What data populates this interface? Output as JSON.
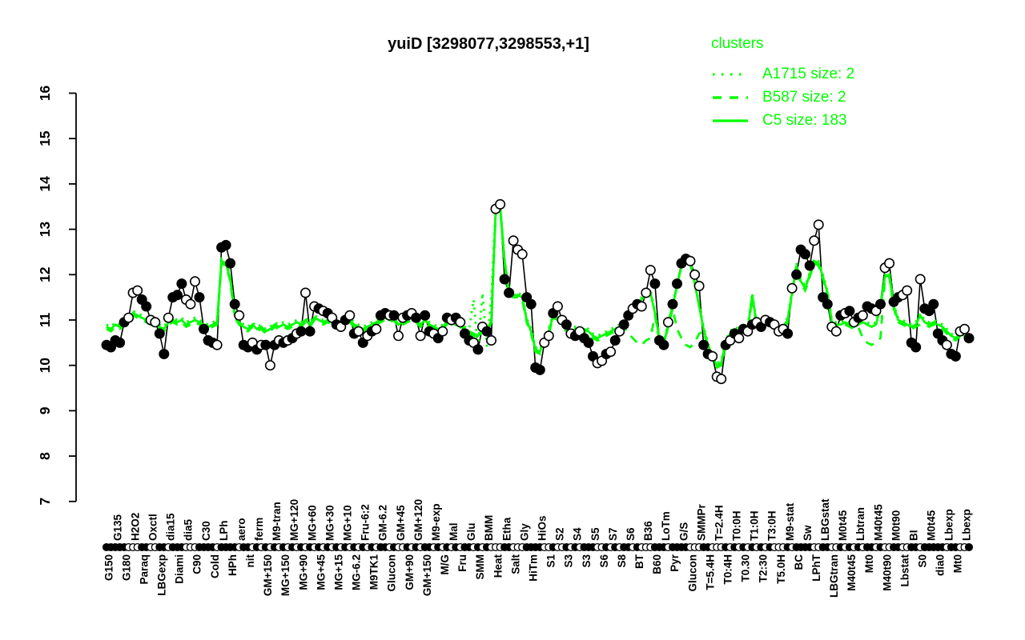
{
  "title": "yuiD [3298077,3298553,+1]",
  "colors": {
    "cluster_green": "#00ff00",
    "series_black": "#000000",
    "background": "#ffffff"
  },
  "legend": {
    "header": "clusters",
    "items": [
      {
        "label": "A1715 size: 2",
        "style": "dotted"
      },
      {
        "label": "B587 size: 2",
        "style": "dashed"
      },
      {
        "label": "C5 size: 183",
        "style": "solid"
      }
    ]
  },
  "y_axis": {
    "min": 7,
    "max": 16,
    "ticks": [
      7,
      8,
      9,
      10,
      11,
      12,
      13,
      14,
      15,
      16
    ]
  },
  "chart_data": {
    "type": "line",
    "title": "yuiD [3298077,3298553,+1]",
    "ylim": [
      7,
      16
    ],
    "grid": false,
    "legend_position": "top-right",
    "x_labels": [
      {
        "text": "G150",
        "row": "bottom"
      },
      {
        "text": "G135",
        "row": "top"
      },
      {
        "text": "G180",
        "row": "bottom"
      },
      {
        "text": "H2O2",
        "row": "top"
      },
      {
        "text": "Paraq",
        "row": "bottom"
      },
      {
        "text": "Oxctl",
        "row": "top"
      },
      {
        "text": "LBGexp",
        "row": "bottom"
      },
      {
        "text": "dia15",
        "row": "top"
      },
      {
        "text": "Diami",
        "row": "bottom"
      },
      {
        "text": "dia5",
        "row": "top"
      },
      {
        "text": "C90",
        "row": "bottom"
      },
      {
        "text": "C30",
        "row": "top"
      },
      {
        "text": "Cold",
        "row": "bottom"
      },
      {
        "text": "LPh",
        "row": "top"
      },
      {
        "text": "HPh",
        "row": "bottom"
      },
      {
        "text": "aero",
        "row": "top"
      },
      {
        "text": "nit",
        "row": "bottom"
      },
      {
        "text": "ferm",
        "row": "top"
      },
      {
        "text": "GM+150",
        "row": "bottom"
      },
      {
        "text": "M9-tran",
        "row": "top"
      },
      {
        "text": "MG+150",
        "row": "bottom"
      },
      {
        "text": "MG+120",
        "row": "top"
      },
      {
        "text": "MG+90",
        "row": "bottom"
      },
      {
        "text": "MG+60",
        "row": "top"
      },
      {
        "text": "MG+45",
        "row": "bottom"
      },
      {
        "text": "MG+30",
        "row": "top"
      },
      {
        "text": "MG+15",
        "row": "bottom"
      },
      {
        "text": "MG+10",
        "row": "top"
      },
      {
        "text": "MG-6.2",
        "row": "bottom"
      },
      {
        "text": "Fru-6:2",
        "row": "top"
      },
      {
        "text": "M9TK1",
        "row": "bottom"
      },
      {
        "text": "GM-6.2",
        "row": "top"
      },
      {
        "text": "Glucon",
        "row": "bottom"
      },
      {
        "text": "GM+45",
        "row": "top"
      },
      {
        "text": "GM+90",
        "row": "bottom"
      },
      {
        "text": "GM+120",
        "row": "top"
      },
      {
        "text": "GM+150",
        "row": "bottom"
      },
      {
        "text": "M9-exp",
        "row": "top"
      },
      {
        "text": "M/G",
        "row": "bottom"
      },
      {
        "text": "Mal",
        "row": "top"
      },
      {
        "text": "Fru",
        "row": "bottom"
      },
      {
        "text": "Glu",
        "row": "top"
      },
      {
        "text": "SMM",
        "row": "bottom"
      },
      {
        "text": "BMM",
        "row": "top"
      },
      {
        "text": "Heat",
        "row": "bottom"
      },
      {
        "text": "Etha",
        "row": "top"
      },
      {
        "text": "Salt",
        "row": "bottom"
      },
      {
        "text": "Gly",
        "row": "top"
      },
      {
        "text": "HiTm",
        "row": "bottom"
      },
      {
        "text": "HiOs",
        "row": "top"
      },
      {
        "text": "S1",
        "row": "bottom"
      },
      {
        "text": "S2",
        "row": "top"
      },
      {
        "text": "S3",
        "row": "bottom"
      },
      {
        "text": "S4",
        "row": "top"
      },
      {
        "text": "S3",
        "row": "bottom"
      },
      {
        "text": "S5",
        "row": "top"
      },
      {
        "text": "S6",
        "row": "bottom"
      },
      {
        "text": "S7",
        "row": "top"
      },
      {
        "text": "S8",
        "row": "bottom"
      },
      {
        "text": "S6",
        "row": "top"
      },
      {
        "text": "BT",
        "row": "bottom"
      },
      {
        "text": "B36",
        "row": "top"
      },
      {
        "text": "B60",
        "row": "bottom"
      },
      {
        "text": "LoTm",
        "row": "top"
      },
      {
        "text": "Pyr",
        "row": "bottom"
      },
      {
        "text": "G/S",
        "row": "top"
      },
      {
        "text": "Glucon",
        "row": "bottom"
      },
      {
        "text": "SMMPr",
        "row": "top"
      },
      {
        "text": "T=5.4H",
        "row": "bottom"
      },
      {
        "text": "T=2.4H",
        "row": "top"
      },
      {
        "text": "T0:4H",
        "row": "bottom"
      },
      {
        "text": "T0:0H",
        "row": "top"
      },
      {
        "text": "T0.30",
        "row": "bottom"
      },
      {
        "text": "T1:0H",
        "row": "top"
      },
      {
        "text": "T2:30",
        "row": "bottom"
      },
      {
        "text": "T3:0H",
        "row": "top"
      },
      {
        "text": "T5.0H",
        "row": "bottom"
      },
      {
        "text": "M9-stat",
        "row": "top"
      },
      {
        "text": "BC",
        "row": "bottom"
      },
      {
        "text": "Sw",
        "row": "top"
      },
      {
        "text": "LPhT",
        "row": "bottom"
      },
      {
        "text": "LBGstat",
        "row": "top"
      },
      {
        "text": "LBGtran",
        "row": "bottom"
      },
      {
        "text": "M0t45",
        "row": "top"
      },
      {
        "text": "M40t45",
        "row": "bottom"
      },
      {
        "text": "Lbtran",
        "row": "top"
      },
      {
        "text": "Mt0",
        "row": "bottom"
      },
      {
        "text": "M40t45",
        "row": "top"
      },
      {
        "text": "M40t90",
        "row": "bottom"
      },
      {
        "text": "M0t90",
        "row": "top"
      },
      {
        "text": "Lbstat",
        "row": "bottom"
      },
      {
        "text": "BI",
        "row": "top"
      },
      {
        "text": "S0",
        "row": "bottom"
      },
      {
        "text": "M0t45",
        "row": "top"
      },
      {
        "text": "dia0",
        "row": "bottom"
      },
      {
        "text": "Lbexp",
        "row": "top"
      },
      {
        "text": "Mt0",
        "row": "bottom"
      },
      {
        "text": "Lbexp",
        "row": "top"
      }
    ],
    "gene_series": {
      "name": "yuiD",
      "values": [
        10.45,
        10.4,
        10.55,
        10.5,
        10.95,
        11.05,
        11.6,
        11.65,
        11.45,
        11.3,
        11.0,
        10.95,
        10.7,
        10.25,
        11.05,
        11.5,
        11.55,
        11.8,
        11.45,
        11.35,
        11.85,
        11.5,
        10.8,
        10.55,
        10.5,
        10.45,
        12.6,
        12.65,
        12.25,
        11.35,
        11.1,
        10.45,
        10.4,
        10.5,
        10.35,
        10.45,
        10.45,
        10.0,
        10.45,
        10.55,
        10.5,
        10.55,
        10.6,
        10.7,
        10.75,
        11.6,
        10.75,
        11.3,
        11.25,
        11.2,
        11.15,
        11.05,
        10.9,
        10.85,
        11.0,
        11.1,
        10.7,
        10.75,
        10.5,
        10.65,
        10.75,
        10.8,
        11.1,
        11.15,
        11.1,
        11.1,
        10.65,
        11.05,
        11.1,
        11.15,
        11.05,
        10.65,
        11.1,
        10.75,
        10.7,
        10.6,
        10.75,
        11.05,
        11.0,
        11.05,
        10.95,
        10.7,
        10.55,
        10.5,
        10.35,
        10.85,
        10.75,
        10.55,
        13.45,
        13.55,
        11.9,
        11.6,
        12.75,
        12.55,
        12.45,
        11.5,
        11.35,
        9.95,
        9.9,
        10.5,
        10.65,
        11.15,
        11.3,
        11.0,
        10.9,
        10.7,
        10.65,
        10.75,
        10.6,
        10.5,
        10.2,
        10.05,
        10.1,
        10.25,
        10.3,
        10.55,
        10.75,
        10.9,
        11.1,
        11.25,
        11.35,
        11.3,
        11.6,
        12.1,
        11.8,
        10.55,
        10.45,
        10.95,
        11.35,
        11.8,
        12.25,
        12.35,
        12.3,
        12.0,
        11.75,
        10.45,
        10.25,
        10.2,
        9.75,
        9.7,
        10.45,
        10.55,
        10.7,
        10.6,
        10.8,
        10.75,
        10.9,
        10.95,
        10.85,
        11.0,
        10.95,
        10.9,
        10.75,
        10.8,
        10.7,
        11.7,
        12.0,
        12.55,
        12.45,
        12.2,
        12.75,
        13.1,
        11.5,
        11.35,
        10.85,
        10.75,
        11.1,
        11.15,
        11.2,
        10.95,
        11.05,
        11.1,
        11.3,
        11.25,
        11.2,
        11.35,
        12.15,
        12.25,
        11.4,
        11.5,
        11.55,
        11.65,
        10.5,
        10.4,
        11.9,
        11.25,
        11.2,
        11.35,
        10.7,
        10.55,
        10.45,
        10.25,
        10.2,
        10.75,
        10.8,
        10.6
      ],
      "filled": [
        1,
        1,
        1,
        1,
        1,
        0,
        0,
        0,
        1,
        1,
        0,
        0,
        1,
        1,
        0,
        1,
        1,
        1,
        0,
        0,
        0,
        1,
        1,
        1,
        1,
        0,
        1,
        1,
        1,
        1,
        0,
        1,
        1,
        0,
        1,
        0,
        1,
        0,
        1,
        0,
        1,
        0,
        1,
        0,
        1,
        0,
        1,
        0,
        1,
        0,
        1,
        0,
        1,
        0,
        1,
        0,
        1,
        0,
        1,
        0,
        1,
        0,
        1,
        1,
        0,
        1,
        0,
        0,
        1,
        0,
        1,
        0,
        1,
        1,
        0,
        1,
        0,
        1,
        0,
        1,
        0,
        1,
        1,
        0,
        1,
        0,
        1,
        0,
        0,
        0,
        1,
        1,
        0,
        0,
        0,
        1,
        1,
        1,
        1,
        0,
        0,
        1,
        0,
        0,
        1,
        0,
        1,
        0,
        1,
        1,
        1,
        0,
        0,
        1,
        0,
        1,
        0,
        1,
        1,
        0,
        1,
        0,
        0,
        0,
        1,
        1,
        1,
        0,
        1,
        1,
        1,
        1,
        0,
        0,
        0,
        1,
        1,
        0,
        0,
        0,
        1,
        0,
        1,
        0,
        1,
        0,
        1,
        0,
        1,
        0,
        1,
        0,
        0,
        0,
        1,
        0,
        1,
        1,
        1,
        1,
        0,
        0,
        1,
        1,
        0,
        0,
        1,
        0,
        1,
        0,
        1,
        0,
        1,
        1,
        0,
        1,
        0,
        0,
        1,
        1,
        0,
        0,
        1,
        1,
        0,
        1,
        1,
        1,
        1,
        1,
        0,
        1,
        1,
        0,
        0,
        1
      ]
    },
    "clusters": {
      "c5": {
        "name": "C5",
        "size": 183,
        "style": "solid",
        "values": [
          10.85,
          10.8,
          10.9,
          10.85,
          10.95,
          11.0,
          11.15,
          11.1,
          11.05,
          11.0,
          10.95,
          10.9,
          10.85,
          10.8,
          10.95,
          11.0,
          10.95,
          11.0,
          10.9,
          10.95,
          11.0,
          10.95,
          10.9,
          10.85,
          10.9,
          10.95,
          12.3,
          12.25,
          11.9,
          11.1,
          10.95,
          10.85,
          10.8,
          10.9,
          10.8,
          10.85,
          10.75,
          10.8,
          10.9,
          10.85,
          10.9,
          10.85,
          10.9,
          10.95,
          10.9,
          11.0,
          10.9,
          11.05,
          11.0,
          10.95,
          11.0,
          10.95,
          10.9,
          10.85,
          10.95,
          11.0,
          10.9,
          10.85,
          10.8,
          10.85,
          10.9,
          10.95,
          11.0,
          11.05,
          11.0,
          11.05,
          10.9,
          10.95,
          11.0,
          11.05,
          11.0,
          10.9,
          11.0,
          10.9,
          10.85,
          10.8,
          10.85,
          10.95,
          10.9,
          10.95,
          10.9,
          10.8,
          10.75,
          10.7,
          10.65,
          10.8,
          10.75,
          11.0,
          13.4,
          13.5,
          12.3,
          11.6,
          11.55,
          11.55,
          11.5,
          11.0,
          10.75,
          10.35,
          10.3,
          10.6,
          10.75,
          11.1,
          11.05,
          10.9,
          10.8,
          10.75,
          10.8,
          10.75,
          10.8,
          10.75,
          10.65,
          10.6,
          10.65,
          10.7,
          10.75,
          10.8,
          10.85,
          10.9,
          11.05,
          11.2,
          11.35,
          11.45,
          11.55,
          11.6,
          11.15,
          10.6,
          10.45,
          10.9,
          11.3,
          11.75,
          12.2,
          12.3,
          12.25,
          11.8,
          11.3,
          10.8,
          10.45,
          10.2,
          10.0,
          10.05,
          10.5,
          10.7,
          10.8,
          10.75,
          10.85,
          10.8,
          11.55,
          10.9,
          10.85,
          10.95,
          10.9,
          10.85,
          10.8,
          10.85,
          11.0,
          11.6,
          12.2,
          11.85,
          11.7,
          12.0,
          12.3,
          12.25,
          11.95,
          11.6,
          10.95,
          10.9,
          10.9,
          10.95,
          10.9,
          10.85,
          10.9,
          10.95,
          10.9,
          10.85,
          10.9,
          11.3,
          11.95,
          12.0,
          11.3,
          11.0,
          10.95,
          10.9,
          10.85,
          10.9,
          11.1,
          10.95,
          10.9,
          10.95,
          10.9,
          10.85,
          10.75,
          10.65,
          10.6,
          10.7,
          10.65,
          10.6
        ]
      },
      "b587": {
        "name": "B587",
        "size": 2,
        "style": "dashed",
        "base": "c5",
        "offset": -0.05,
        "overrides": {
          "118": 10.7,
          "119": 10.6,
          "120": 10.5,
          "121": 10.45,
          "122": 10.55,
          "123": 10.6,
          "129": 10.8,
          "130": 10.6,
          "131": 10.45,
          "132": 10.4,
          "133": 10.5,
          "134": 10.7,
          "171": 10.6,
          "172": 10.5,
          "173": 10.45,
          "174": 10.5,
          "175": 10.6,
          "184": 10.9
        }
      },
      "a1715": {
        "name": "A1715",
        "size": 2,
        "style": "dotted",
        "base": "c5",
        "offset": 0.05,
        "overrides": {
          "83": 11.45,
          "84": 10.35,
          "85": 11.6,
          "86": 10.4,
          "87": 11.5
        }
      }
    }
  }
}
